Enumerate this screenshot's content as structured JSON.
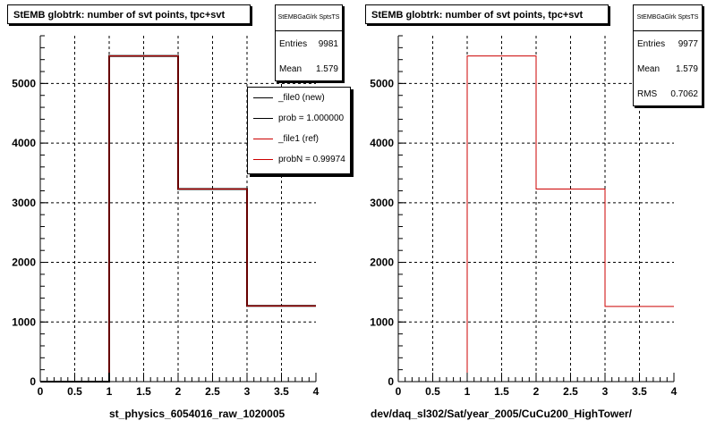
{
  "colors": {
    "new": "#000000",
    "ref": "#cc0000",
    "grid": "#000000"
  },
  "pads": [
    {
      "title": "StEMB globtrk: number of svt points, tpc+svt",
      "stats": {
        "name": "StEMBGaGlrk SptsTS",
        "rows": [
          {
            "label": "Entries",
            "value": "9981"
          },
          {
            "label": "Mean",
            "value": "1.579"
          }
        ]
      },
      "legend": [
        {
          "label": "_file0 (new)",
          "color": "#000000"
        },
        {
          "label": "prob = 1.000000",
          "color": "#000000"
        },
        {
          "label": "_file1 (ref)",
          "color": "#cc0000"
        },
        {
          "label": "probN = 0.99974",
          "color": "#cc0000"
        }
      ],
      "xtitle": "st_physics_6054016_raw_1020005"
    },
    {
      "title": "StEMB globtrk: number of svt points, tpc+svt",
      "stats": {
        "name": "StEMBGaGlrk SptsTS",
        "rows": [
          {
            "label": "Entries",
            "value": "9977"
          },
          {
            "label": "Mean",
            "value": "1.579"
          },
          {
            "label": "RMS",
            "value": "0.7062"
          }
        ]
      },
      "legend": [],
      "xtitle": "dev/daq_sl302/Sat/year_2005/CuCu200_HighTower/"
    }
  ],
  "chart_data": [
    {
      "type": "bar",
      "title": "StEMB globtrk: number of svt points, tpc+svt",
      "xlabel": "st_physics_6054016_raw_1020005",
      "ylabel": "",
      "bin_edges": [
        0,
        1,
        2,
        3,
        4
      ],
      "xlim": [
        0,
        4
      ],
      "ylim": [
        0,
        5800
      ],
      "xticks": [
        "0",
        "0.5",
        "1",
        "1.5",
        "2",
        "2.5",
        "3",
        "3.5",
        "4"
      ],
      "yticks": [
        "0",
        "1000",
        "2000",
        "3000",
        "4000",
        "5000"
      ],
      "grid": true,
      "legend_position": "top-right",
      "series": [
        {
          "name": "_file0 (new)",
          "color": "#000000",
          "values": [
            0,
            5460,
            3230,
            1270
          ]
        },
        {
          "name": "_file1 (ref)",
          "color": "#cc0000",
          "values": [
            0,
            5460,
            3230,
            1270
          ]
        }
      ]
    },
    {
      "type": "bar",
      "title": "StEMB globtrk: number of svt points, tpc+svt",
      "xlabel": "dev/daq_sl302/Sat/year_2005/CuCu200_HighTower/",
      "ylabel": "",
      "bin_edges": [
        0,
        1,
        2,
        3,
        4
      ],
      "xlim": [
        0,
        4
      ],
      "ylim": [
        0,
        5800
      ],
      "xticks": [
        "0",
        "0.5",
        "1",
        "1.5",
        "2",
        "2.5",
        "3",
        "3.5",
        "4"
      ],
      "yticks": [
        "0",
        "1000",
        "2000",
        "3000",
        "4000",
        "5000"
      ],
      "grid": true,
      "series": [
        {
          "color": "#cc0000",
          "values": [
            0,
            5460,
            3230,
            1260
          ]
        }
      ]
    }
  ]
}
